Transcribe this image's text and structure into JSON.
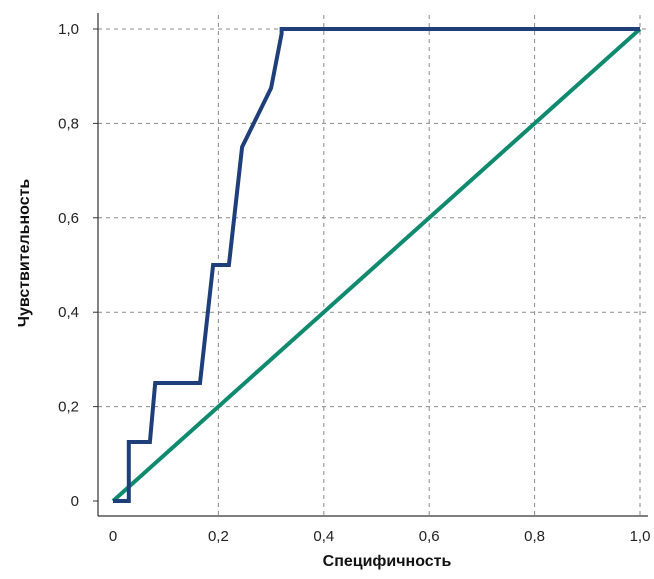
{
  "chart_data": {
    "type": "line",
    "title": "",
    "xlabel": "Специфичность",
    "ylabel": "Чувствительность",
    "xlim": [
      0,
      1
    ],
    "ylim": [
      0,
      1
    ],
    "x_ticks": [
      0,
      0.2,
      0.4,
      0.6,
      0.8,
      1.0
    ],
    "x_tick_labels": [
      "0",
      "0,2",
      "0,4",
      "0,6",
      "0,8",
      "1,0"
    ],
    "y_ticks": [
      0,
      0.2,
      0.4,
      0.6,
      0.8,
      1.0
    ],
    "y_tick_labels": [
      "0",
      "0,2",
      "0,4",
      "0,6",
      "0,8",
      "1,0"
    ],
    "grid": true,
    "grid_style": "dashed",
    "legend": "none",
    "series": [
      {
        "color": "#1e3f7a",
        "x": [
          0,
          0.03,
          0.03,
          0.07,
          0.08,
          0.08,
          0.165,
          0.19,
          0.19,
          0.22,
          0.245,
          0.3,
          0.32,
          0.32,
          1.0
        ],
        "y": [
          0,
          0,
          0.125,
          0.125,
          0.25,
          0.25,
          0.25,
          0.5,
          0.5,
          0.5,
          0.75,
          0.875,
          0.99,
          1.0,
          1.0
        ]
      },
      {
        "color": "#0f8a6e",
        "x": [
          0,
          1.0
        ],
        "y": [
          0,
          1.0
        ]
      }
    ]
  }
}
